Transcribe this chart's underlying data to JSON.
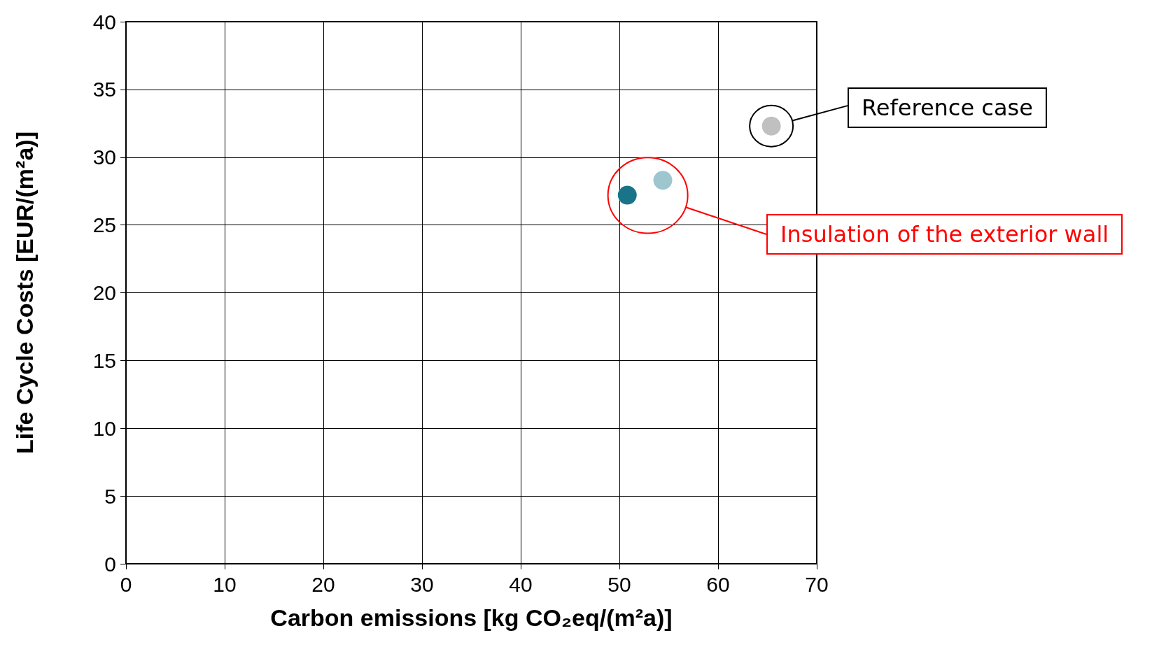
{
  "chart_data": {
    "type": "scatter",
    "xlabel": "Carbon emissions [kg CO₂eq/(m²a)]",
    "ylabel": "Life Cycle Costs [EUR/(m²a)]",
    "x": [
      50.8,
      54.4,
      65.4
    ],
    "values": [
      27.2,
      28.3,
      32.3
    ],
    "colors": [
      "#1a7489",
      "#9dc6cf",
      "#c0c0c0"
    ],
    "xlim": [
      0,
      70
    ],
    "xticks": [
      0,
      10,
      20,
      30,
      40,
      50,
      60,
      70
    ],
    "ylim": [
      0,
      40
    ],
    "yticks": [
      0,
      5,
      10,
      15,
      20,
      25,
      30,
      35,
      40
    ],
    "grid": true,
    "marker": "circle",
    "annotations": [
      "Reference case",
      "Insulation of the exterior wall"
    ]
  }
}
